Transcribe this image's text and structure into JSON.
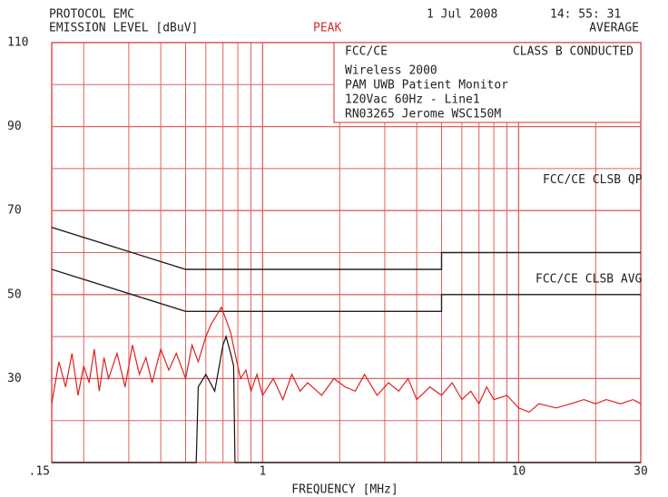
{
  "chart_data": {
    "type": "line",
    "header": {
      "protocol": "PROTOCOL EMC",
      "level": "EMISSION LEVEL [dBuV]",
      "detector": "PEAK",
      "date": "1 Jul 2008",
      "time": "14: 55: 31",
      "mode": "AVERAGE"
    },
    "info": {
      "standard": "FCC/CE",
      "class": "CLASS B CONDUCTED",
      "lines": [
        "Wireless 2000",
        "PAM UWB Patient Monitor",
        "120Vac 60Hz - Line1",
        "RN03265 Jerome WSC150M"
      ]
    },
    "xlabel": "FREQUENCY [MHz]",
    "xscale": "log",
    "xlim": [
      0.15,
      30
    ],
    "xticks": [
      {
        "value": 0.15,
        "label": ".15"
      },
      1,
      10,
      30
    ],
    "x_minor_ticks": [
      0.2,
      0.3,
      0.4,
      0.5,
      0.6,
      0.7,
      0.8,
      0.9,
      2,
      3,
      4,
      5,
      6,
      7,
      8,
      9,
      20
    ],
    "ylim": [
      10,
      110
    ],
    "yticks": [
      30,
      50,
      70,
      90,
      110
    ],
    "y_minor_ticks": [
      20,
      40,
      60,
      80,
      100
    ],
    "grid": true,
    "grid_color": "#e06060",
    "series": [
      {
        "name": "FCC/CE CLSB QP",
        "color": "#222222",
        "x": [
          0.15,
          0.5,
          5,
          5,
          30
        ],
        "values": [
          66,
          56,
          56,
          60,
          60
        ]
      },
      {
        "name": "FCC/CE CLSB AVG",
        "color": "#222222",
        "x": [
          0.15,
          0.5,
          5,
          5,
          30
        ],
        "values": [
          56,
          46,
          46,
          50,
          50
        ]
      },
      {
        "color": "#e02020",
        "x": [
          0.15,
          0.16,
          0.17,
          0.18,
          0.19,
          0.2,
          0.21,
          0.22,
          0.23,
          0.24,
          0.25,
          0.27,
          0.29,
          0.31,
          0.33,
          0.35,
          0.37,
          0.4,
          0.43,
          0.46,
          0.5,
          0.53,
          0.56,
          0.6,
          0.63,
          0.66,
          0.69,
          0.72,
          0.75,
          0.78,
          0.82,
          0.86,
          0.9,
          0.95,
          1,
          1.1,
          1.2,
          1.3,
          1.4,
          1.5,
          1.7,
          1.9,
          2.1,
          2.3,
          2.5,
          2.8,
          3.1,
          3.4,
          3.7,
          4,
          4.5,
          5,
          5.5,
          6,
          6.5,
          7,
          7.5,
          8,
          9,
          10,
          11,
          12,
          14,
          16,
          18,
          20,
          22,
          25,
          28,
          30
        ],
        "values": [
          24,
          34,
          28,
          36,
          26,
          33,
          29,
          37,
          27,
          35,
          30,
          36,
          28,
          38,
          31,
          35,
          29,
          37,
          32,
          36,
          30,
          38,
          34,
          40,
          43,
          45,
          47,
          44,
          41,
          36,
          30,
          32,
          27,
          31,
          26,
          30,
          25,
          31,
          27,
          29,
          26,
          30,
          28,
          27,
          31,
          26,
          29,
          27,
          30,
          25,
          28,
          26,
          29,
          25,
          27,
          24,
          28,
          25,
          26,
          23,
          22,
          24,
          23,
          24,
          25,
          24,
          25,
          24,
          25,
          24
        ]
      },
      {
        "color": "#111111",
        "x": [
          0.15,
          0.55,
          0.56,
          0.6,
          0.65,
          0.7,
          0.72,
          0.75,
          0.77,
          0.78,
          30
        ],
        "values": [
          10,
          10,
          28,
          31,
          27,
          38,
          40,
          36,
          33,
          10,
          10
        ]
      }
    ]
  }
}
